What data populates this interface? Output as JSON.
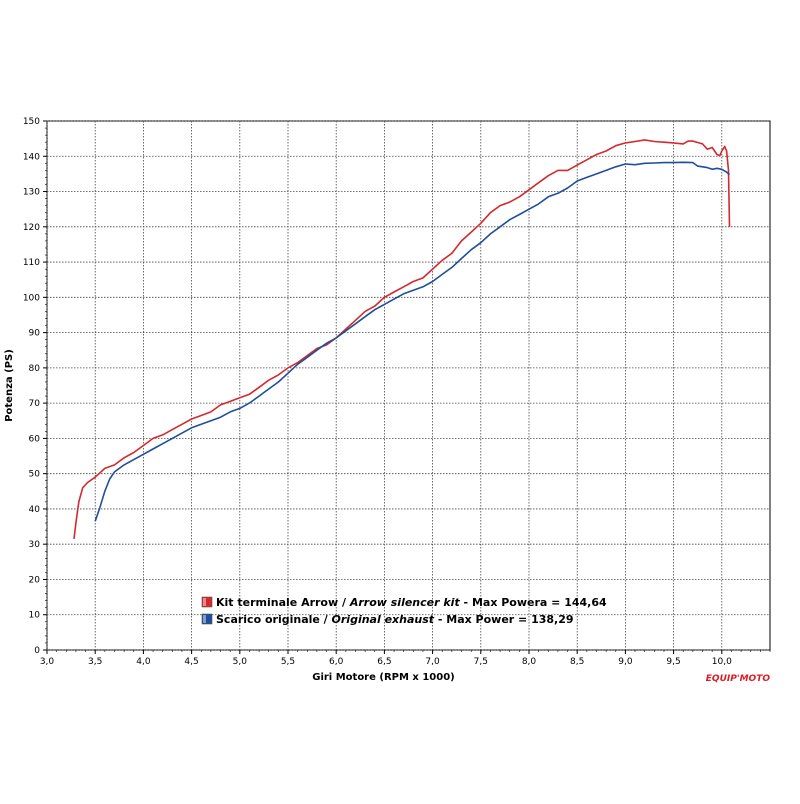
{
  "chart_data": {
    "type": "line",
    "xlabel": "Giri Motore (RPM x 1000)",
    "ylabel": "Potenza (PS)",
    "xlim": [
      3.0,
      10.5
    ],
    "ylim": [
      0,
      150
    ],
    "x_ticks": [
      "3,0",
      "3,5",
      "4,0",
      "4,5",
      "5,0",
      "5,5",
      "6,0",
      "6,5",
      "7,0",
      "7,5",
      "8,0",
      "8,5",
      "9,0",
      "9,5",
      "10,0"
    ],
    "y_ticks": [
      "0",
      "10",
      "20",
      "30",
      "40",
      "50",
      "60",
      "70",
      "80",
      "90",
      "100",
      "110",
      "120",
      "130",
      "140",
      "150"
    ],
    "grid": true,
    "legend_position": "bottom-center",
    "series": [
      {
        "name": "Kit terminale Arrow / Arrow silencer kit - Max Powera = 144,64",
        "color": "#d42a2e",
        "points": [
          [
            3.28,
            31.5
          ],
          [
            3.3,
            36
          ],
          [
            3.33,
            42
          ],
          [
            3.37,
            46
          ],
          [
            3.42,
            47.5
          ],
          [
            3.5,
            49
          ],
          [
            3.6,
            51.5
          ],
          [
            3.7,
            52.5
          ],
          [
            3.8,
            54.5
          ],
          [
            3.9,
            56
          ],
          [
            4.0,
            58
          ],
          [
            4.1,
            60
          ],
          [
            4.2,
            61
          ],
          [
            4.3,
            62.5
          ],
          [
            4.4,
            64
          ],
          [
            4.5,
            65.5
          ],
          [
            4.6,
            66.5
          ],
          [
            4.7,
            67.5
          ],
          [
            4.8,
            69.5
          ],
          [
            4.9,
            70.5
          ],
          [
            5.0,
            71.5
          ],
          [
            5.1,
            72.5
          ],
          [
            5.2,
            74.5
          ],
          [
            5.3,
            76.5
          ],
          [
            5.4,
            78
          ],
          [
            5.5,
            80
          ],
          [
            5.6,
            81.5
          ],
          [
            5.7,
            83.5
          ],
          [
            5.8,
            85.5
          ],
          [
            5.9,
            86.5
          ],
          [
            6.0,
            88.5
          ],
          [
            6.1,
            91
          ],
          [
            6.2,
            93.5
          ],
          [
            6.3,
            96
          ],
          [
            6.4,
            97.5
          ],
          [
            6.5,
            100
          ],
          [
            6.6,
            101.5
          ],
          [
            6.7,
            103
          ],
          [
            6.8,
            104.5
          ],
          [
            6.9,
            105.5
          ],
          [
            7.0,
            108
          ],
          [
            7.1,
            110.5
          ],
          [
            7.2,
            112.5
          ],
          [
            7.3,
            116
          ],
          [
            7.4,
            118.5
          ],
          [
            7.5,
            121
          ],
          [
            7.6,
            124
          ],
          [
            7.7,
            126
          ],
          [
            7.8,
            127
          ],
          [
            7.9,
            128.5
          ],
          [
            8.0,
            130.5
          ],
          [
            8.1,
            132.5
          ],
          [
            8.2,
            134.5
          ],
          [
            8.3,
            136
          ],
          [
            8.4,
            136
          ],
          [
            8.5,
            137.5
          ],
          [
            8.6,
            139
          ],
          [
            8.7,
            140.5
          ],
          [
            8.8,
            141.5
          ],
          [
            8.9,
            143
          ],
          [
            9.0,
            143.8
          ],
          [
            9.1,
            144.2
          ],
          [
            9.2,
            144.64
          ],
          [
            9.3,
            144.2
          ],
          [
            9.4,
            144
          ],
          [
            9.5,
            143.8
          ],
          [
            9.6,
            143.5
          ],
          [
            9.65,
            144.3
          ],
          [
            9.7,
            144.3
          ],
          [
            9.8,
            143.5
          ],
          [
            9.85,
            142
          ],
          [
            9.9,
            142.5
          ],
          [
            9.95,
            140.5
          ],
          [
            9.98,
            140.2
          ],
          [
            10.0,
            141.5
          ],
          [
            10.03,
            142.8
          ],
          [
            10.05,
            141.5
          ],
          [
            10.07,
            136
          ],
          [
            10.08,
            120
          ]
        ]
      },
      {
        "name": "Scarico originale / Original exhaust - Max Power = 138,29",
        "color": "#1f4f9a",
        "points": [
          [
            3.5,
            36.5
          ],
          [
            3.55,
            40.5
          ],
          [
            3.6,
            45
          ],
          [
            3.65,
            48.5
          ],
          [
            3.7,
            50.5
          ],
          [
            3.8,
            52.5
          ],
          [
            3.9,
            54
          ],
          [
            4.0,
            55.5
          ],
          [
            4.1,
            57
          ],
          [
            4.2,
            58.5
          ],
          [
            4.3,
            60
          ],
          [
            4.4,
            61.5
          ],
          [
            4.5,
            63
          ],
          [
            4.6,
            64
          ],
          [
            4.7,
            65
          ],
          [
            4.8,
            66
          ],
          [
            4.9,
            67.5
          ],
          [
            5.0,
            68.5
          ],
          [
            5.1,
            70
          ],
          [
            5.2,
            72
          ],
          [
            5.3,
            74
          ],
          [
            5.4,
            76
          ],
          [
            5.5,
            78.5
          ],
          [
            5.6,
            81
          ],
          [
            5.7,
            83
          ],
          [
            5.8,
            85
          ],
          [
            5.9,
            87
          ],
          [
            6.0,
            88.5
          ],
          [
            6.1,
            90.5
          ],
          [
            6.2,
            92.5
          ],
          [
            6.3,
            94.5
          ],
          [
            6.4,
            96.5
          ],
          [
            6.5,
            98
          ],
          [
            6.6,
            99.5
          ],
          [
            6.7,
            101
          ],
          [
            6.8,
            102
          ],
          [
            6.9,
            103
          ],
          [
            7.0,
            104.5
          ],
          [
            7.1,
            106.5
          ],
          [
            7.2,
            108.5
          ],
          [
            7.3,
            111
          ],
          [
            7.4,
            113.5
          ],
          [
            7.5,
            115.5
          ],
          [
            7.6,
            118
          ],
          [
            7.7,
            120
          ],
          [
            7.8,
            122
          ],
          [
            7.9,
            123.5
          ],
          [
            8.0,
            125
          ],
          [
            8.1,
            126.5
          ],
          [
            8.2,
            128.5
          ],
          [
            8.3,
            129.5
          ],
          [
            8.4,
            131
          ],
          [
            8.5,
            133
          ],
          [
            8.6,
            134
          ],
          [
            8.7,
            135
          ],
          [
            8.8,
            136
          ],
          [
            8.9,
            137
          ],
          [
            9.0,
            137.8
          ],
          [
            9.1,
            137.6
          ],
          [
            9.2,
            138
          ],
          [
            9.3,
            138.1
          ],
          [
            9.4,
            138.2
          ],
          [
            9.5,
            138.2
          ],
          [
            9.6,
            138.29
          ],
          [
            9.7,
            138.2
          ],
          [
            9.75,
            137.2
          ],
          [
            9.8,
            137
          ],
          [
            9.85,
            136.8
          ],
          [
            9.9,
            136.3
          ],
          [
            9.95,
            136.6
          ],
          [
            10.0,
            136.3
          ],
          [
            10.05,
            135.5
          ],
          [
            10.08,
            134.8
          ]
        ]
      }
    ],
    "legend": [
      {
        "plain": "Kit terminale Arrow / ",
        "italic": "Arrow silencer kit",
        "rest": " - Max Powera = 144,64",
        "color": "#d42a2e"
      },
      {
        "plain": "Scarico originale / ",
        "italic": "Original exhaust",
        "rest": " - Max Power = 138,29",
        "color": "#1f4f9a"
      }
    ]
  },
  "watermark": "EQUIP'MOTO"
}
